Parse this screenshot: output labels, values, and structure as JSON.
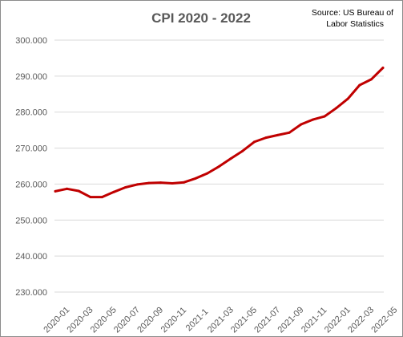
{
  "chart_data": {
    "type": "line",
    "title": "CPI 2020 - 2022",
    "source_line1": "Source: US Bureau of",
    "source_line2": "Labor Statistics",
    "xlabel": "",
    "ylabel": "",
    "ylim": [
      230,
      300
    ],
    "yticks": [
      230,
      240,
      250,
      260,
      270,
      280,
      290,
      300
    ],
    "ytick_labels": [
      "230.000",
      "240.000",
      "250.000",
      "260.000",
      "270.000",
      "280.000",
      "290.000",
      "300.000"
    ],
    "x": [
      "2020-01",
      "2020-02",
      "2020-03",
      "2020-04",
      "2020-05",
      "2020-06",
      "2020-07",
      "2020-08",
      "2020-09",
      "2020-10",
      "2020-11",
      "2020-12",
      "2021-01",
      "2021-02",
      "2021-03",
      "2021-04",
      "2021-05",
      "2021-06",
      "2021-07",
      "2021-08",
      "2021-09",
      "2021-10",
      "2021-11",
      "2021-12",
      "2022-01",
      "2022-02",
      "2022-03",
      "2022-04",
      "2022-05"
    ],
    "xtick_labels": [
      "2020-01",
      "2020-03",
      "2020-05",
      "2020-07",
      "2020-09",
      "2020-11",
      "2021-1",
      "2021-03",
      "2021-05",
      "2021-07",
      "2021-09",
      "2021-11",
      "2022-01",
      "2022-03",
      "2022-05"
    ],
    "series": [
      {
        "color": "#c00000",
        "values": [
          258.0,
          258.7,
          258.1,
          256.4,
          256.4,
          257.8,
          259.1,
          259.9,
          260.3,
          260.4,
          260.2,
          260.5,
          261.6,
          263.0,
          264.9,
          267.1,
          269.2,
          271.7,
          272.9,
          273.6,
          274.3,
          276.6,
          277.9,
          278.8,
          281.1,
          283.7,
          287.5,
          289.1,
          292.3
        ]
      }
    ],
    "grid": true,
    "legend": "none"
  }
}
